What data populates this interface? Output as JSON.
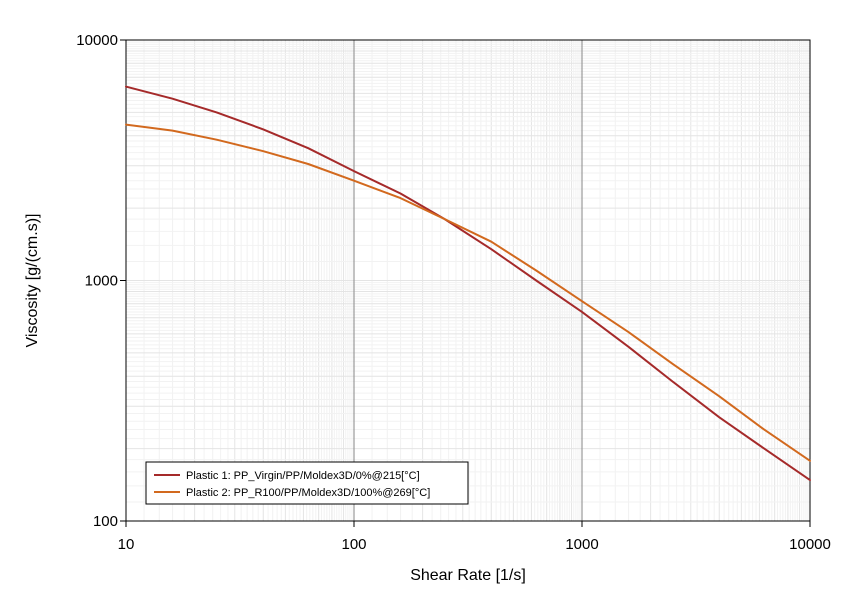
{
  "chart_data": {
    "type": "line",
    "title": "",
    "xlabel": "Shear Rate [1/s]",
    "ylabel": "Viscosity [g/(cm.s)]",
    "x_scale": "log",
    "y_scale": "log",
    "xlim": [
      10,
      10000
    ],
    "ylim": [
      100,
      10000
    ],
    "x_ticks": [
      "10",
      "100",
      "1000",
      "10000"
    ],
    "y_ticks": [
      "100",
      "1000",
      "10000"
    ],
    "grid": true,
    "legend_position": "bottom-left",
    "series": [
      {
        "name": "Plastic 1: PP_Virgin/PP/Moldex3D/0%@215[°C]",
        "color": "#A52A2A",
        "x": [
          10,
          16,
          25,
          40,
          63,
          100,
          160,
          250,
          400,
          630,
          1000,
          1600,
          2500,
          4000,
          6300,
          10000
        ],
        "y": [
          6400,
          5700,
          5000,
          4250,
          3550,
          2850,
          2300,
          1800,
          1350,
          1000,
          740,
          530,
          380,
          270,
          200,
          148
        ]
      },
      {
        "name": "Plastic 2: PP_R100/PP/Moldex3D/100%@269[°C]",
        "color": "#D2691E",
        "x": [
          10,
          16,
          25,
          40,
          63,
          100,
          160,
          250,
          400,
          630,
          1000,
          1600,
          2500,
          4000,
          6300,
          10000
        ],
        "y": [
          4450,
          4200,
          3850,
          3450,
          3050,
          2600,
          2200,
          1800,
          1450,
          1100,
          820,
          610,
          450,
          330,
          240,
          178
        ]
      }
    ]
  }
}
